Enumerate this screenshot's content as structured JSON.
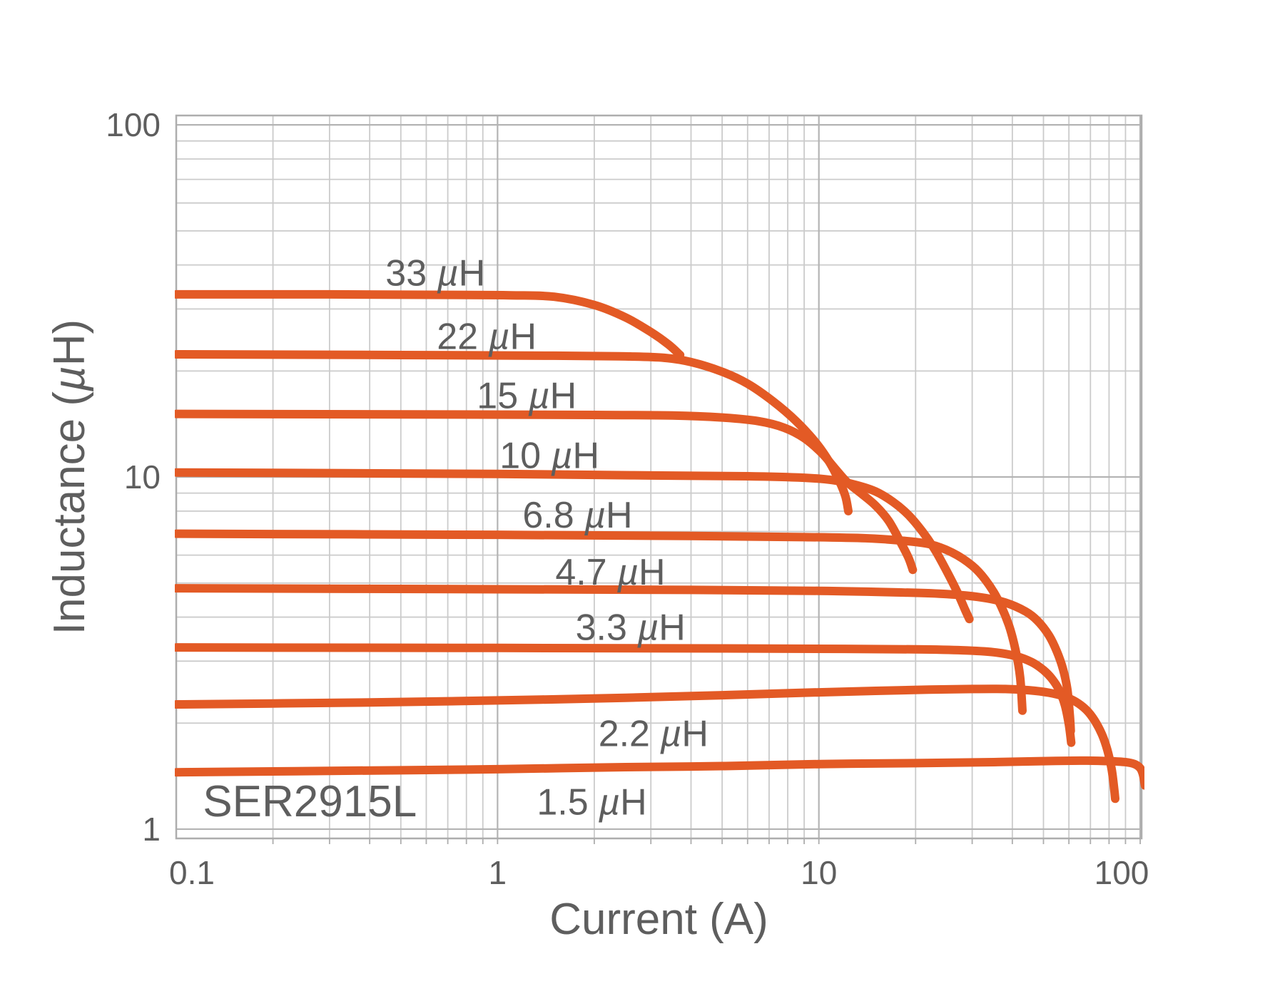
{
  "annotation": {
    "part_number": "SER2915L"
  },
  "colors": {
    "curve": "#E35A25",
    "grid_minor": "#cbcbcb",
    "grid_major": "#b4b4b4",
    "border": "#adadad",
    "text": "#5e5e5e"
  },
  "chart_data": {
    "type": "line",
    "title": "",
    "xlabel": "Current (A)",
    "ylabel": "Inductance (µH)",
    "x_scale": "log",
    "y_scale": "log",
    "xlim": [
      0.1,
      101
    ],
    "ylim": [
      0.941,
      106.3
    ],
    "x_ticks": [
      {
        "v": 0.1,
        "label": "0.1"
      },
      {
        "v": 1,
        "label": "1"
      },
      {
        "v": 10,
        "label": "10"
      },
      {
        "v": 100,
        "label": "100"
      }
    ],
    "y_ticks": [
      {
        "v": 1,
        "label": "1"
      },
      {
        "v": 10,
        "label": "10"
      },
      {
        "v": 100,
        "label": "100"
      }
    ],
    "x_minor": [
      0.2,
      0.3,
      0.4,
      0.5,
      0.6,
      0.7,
      0.8,
      0.9,
      2,
      3,
      4,
      5,
      6,
      7,
      8,
      9,
      20,
      30,
      40,
      50,
      60,
      70,
      80,
      90
    ],
    "y_minor": [
      2,
      3,
      4,
      5,
      6,
      7,
      8,
      9,
      20,
      30,
      40,
      50,
      60,
      70,
      80,
      90
    ],
    "x_major": [
      1,
      10,
      100
    ],
    "y_major": [
      1,
      10,
      100
    ],
    "grid": true,
    "legend_position": "inline-labels",
    "series": [
      {
        "name": "33uH",
        "label": "33 µH",
        "label_anchor": [
          0.448,
          35.0
        ],
        "points": [
          [
            0.1,
            33
          ],
          [
            0.3,
            33
          ],
          [
            0.7,
            32.9
          ],
          [
            1.1,
            32.8
          ],
          [
            1.5,
            32.5
          ],
          [
            2.0,
            30.8
          ],
          [
            2.5,
            28.4
          ],
          [
            3.0,
            25.8
          ],
          [
            3.4,
            23.8
          ],
          [
            3.7,
            22.2
          ]
        ]
      },
      {
        "name": "22uH",
        "label": "22 µH",
        "label_anchor": [
          0.647,
          23.1
        ],
        "points": [
          [
            0.1,
            22.3
          ],
          [
            0.5,
            22.2
          ],
          [
            1.5,
            22.1
          ],
          [
            2.5,
            22.0
          ],
          [
            3.3,
            21.8
          ],
          [
            4.0,
            21.2
          ],
          [
            5.0,
            19.9
          ],
          [
            6.0,
            18.4
          ],
          [
            7.2,
            16.4
          ],
          [
            8.5,
            14.4
          ],
          [
            9.8,
            12.5
          ],
          [
            10.8,
            11.0
          ],
          [
            11.6,
            9.7
          ],
          [
            12.1,
            8.8
          ],
          [
            12.35,
            8.0
          ]
        ]
      },
      {
        "name": "15uH",
        "label": "15 µH",
        "label_anchor": [
          0.862,
          15.7
        ],
        "points": [
          [
            0.1,
            15.1
          ],
          [
            0.7,
            15.05
          ],
          [
            2,
            15.0
          ],
          [
            3.5,
            14.95
          ],
          [
            5,
            14.75
          ],
          [
            6.5,
            14.4
          ],
          [
            7.8,
            13.8
          ],
          [
            9,
            12.9
          ],
          [
            10.2,
            11.7
          ],
          [
            11.2,
            10.6
          ],
          [
            12.2,
            9.7
          ],
          [
            13.5,
            9.0
          ],
          [
            15,
            8.3
          ],
          [
            16.5,
            7.5
          ],
          [
            18,
            6.5
          ],
          [
            19,
            5.9
          ],
          [
            19.6,
            5.45
          ]
        ]
      },
      {
        "name": "10uH",
        "label": "10 µH",
        "label_anchor": [
          1.015,
          10.6
        ],
        "points": [
          [
            0.1,
            10.3
          ],
          [
            1,
            10.2
          ],
          [
            3,
            10.1
          ],
          [
            6,
            10.05
          ],
          [
            9,
            9.95
          ],
          [
            11,
            9.8
          ],
          [
            13,
            9.5
          ],
          [
            15,
            9.1
          ],
          [
            17,
            8.5
          ],
          [
            19,
            7.8
          ],
          [
            21,
            7.0
          ],
          [
            23,
            6.2
          ],
          [
            25,
            5.4
          ],
          [
            27,
            4.7
          ],
          [
            28.5,
            4.2
          ],
          [
            29.4,
            3.95
          ]
        ]
      },
      {
        "name": "6.8uH",
        "label": "6.8 µH",
        "label_anchor": [
          1.196,
          7.18
        ],
        "points": [
          [
            0.1,
            6.9
          ],
          [
            1,
            6.85
          ],
          [
            4,
            6.8
          ],
          [
            9,
            6.75
          ],
          [
            14,
            6.7
          ],
          [
            18,
            6.6
          ],
          [
            22,
            6.45
          ],
          [
            26,
            6.1
          ],
          [
            30,
            5.6
          ],
          [
            33,
            5.1
          ],
          [
            36,
            4.5
          ],
          [
            39,
            3.8
          ],
          [
            41,
            3.2
          ],
          [
            42.3,
            2.7
          ],
          [
            43,
            2.17
          ]
        ]
      },
      {
        "name": "4.7uH",
        "label": "4.7 µH",
        "label_anchor": [
          1.513,
          4.95
        ],
        "points": [
          [
            0.1,
            4.83
          ],
          [
            1,
            4.8
          ],
          [
            4,
            4.78
          ],
          [
            10,
            4.75
          ],
          [
            18,
            4.7
          ],
          [
            25,
            4.65
          ],
          [
            32,
            4.55
          ],
          [
            38,
            4.4
          ],
          [
            44,
            4.15
          ],
          [
            48,
            3.9
          ],
          [
            52,
            3.55
          ],
          [
            55,
            3.2
          ],
          [
            57.5,
            2.85
          ],
          [
            59.3,
            2.5
          ],
          [
            60.4,
            2.1
          ],
          [
            60.8,
            1.9
          ]
        ]
      },
      {
        "name": "3.3uH",
        "label": "3.3 µH",
        "label_anchor": [
          1.748,
          3.45
        ],
        "points": [
          [
            0.1,
            3.28
          ],
          [
            1,
            3.27
          ],
          [
            5,
            3.26
          ],
          [
            12,
            3.25
          ],
          [
            20,
            3.24
          ],
          [
            28,
            3.22
          ],
          [
            35,
            3.18
          ],
          [
            41,
            3.1
          ],
          [
            46,
            2.98
          ],
          [
            50,
            2.83
          ],
          [
            53,
            2.68
          ],
          [
            56,
            2.48
          ],
          [
            58.3,
            2.25
          ],
          [
            60,
            1.98
          ],
          [
            61,
            1.76
          ]
        ]
      },
      {
        "name": "2.2uH",
        "label": "2.2 µH",
        "label_anchor": [
          2.06,
          1.72
        ],
        "points": [
          [
            0.1,
            2.26
          ],
          [
            0.4,
            2.29
          ],
          [
            1,
            2.32
          ],
          [
            2.5,
            2.36
          ],
          [
            5,
            2.4
          ],
          [
            9,
            2.44
          ],
          [
            15,
            2.47
          ],
          [
            22,
            2.49
          ],
          [
            30,
            2.5
          ],
          [
            38,
            2.5
          ],
          [
            45,
            2.48
          ],
          [
            52,
            2.44
          ],
          [
            58,
            2.38
          ],
          [
            63,
            2.3
          ],
          [
            68,
            2.18
          ],
          [
            72,
            2.04
          ],
          [
            76,
            1.86
          ],
          [
            79,
            1.68
          ],
          [
            81.5,
            1.48
          ],
          [
            83,
            1.3
          ],
          [
            83.6,
            1.22
          ]
        ]
      },
      {
        "name": "1.5uH",
        "label": "1.5 µH",
        "label_anchor": [
          1.325,
          1.1
        ],
        "points": [
          [
            0.1,
            1.45
          ],
          [
            0.5,
            1.47
          ],
          [
            1,
            1.48
          ],
          [
            2.5,
            1.5
          ],
          [
            5,
            1.51
          ],
          [
            10,
            1.53
          ],
          [
            20,
            1.54
          ],
          [
            35,
            1.55
          ],
          [
            50,
            1.56
          ],
          [
            65,
            1.565
          ],
          [
            80,
            1.56
          ],
          [
            90,
            1.55
          ],
          [
            96,
            1.53
          ],
          [
            100,
            1.49
          ],
          [
            102,
            1.43
          ],
          [
            103.5,
            1.33
          ]
        ]
      }
    ],
    "annotations": [
      {
        "text": "SER2915L",
        "anchor": [
          0.121,
          1.087
        ]
      }
    ]
  }
}
